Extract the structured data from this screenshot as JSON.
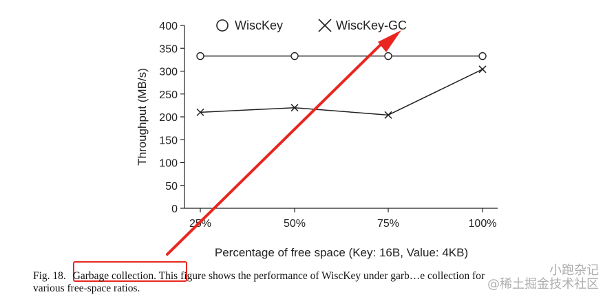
{
  "chart_data": {
    "type": "line",
    "categories": [
      "25%",
      "50%",
      "75%",
      "100%"
    ],
    "series": [
      {
        "name": "WiscKey",
        "marker": "circle",
        "values": [
          333,
          333,
          333,
          333
        ]
      },
      {
        "name": "WiscKey-GC",
        "marker": "x",
        "values": [
          210,
          220,
          204,
          304
        ]
      }
    ],
    "xlabel": "Percentage of free space (Key: 16B, Value: 4KB)",
    "ylabel": "Throughput (MB/s)",
    "ylim": [
      0,
      400
    ],
    "yticks": [
      0,
      50,
      100,
      150,
      200,
      250,
      300,
      350,
      400
    ],
    "legend": "top",
    "grid": false,
    "colors": {
      "line": "#222222",
      "annotation": "#e8261f"
    }
  },
  "caption": {
    "figure_label": "Fig. 18.",
    "title": "Garbage collection.",
    "text_line1": "This figure shows the performance of WiscKey under garb",
    "text_line1_obscured": "…e collection for",
    "text_line2": "various free-space ratios."
  },
  "watermark": {
    "line1": "小跑杂记",
    "line2": "@稀土掘金技术社区"
  }
}
